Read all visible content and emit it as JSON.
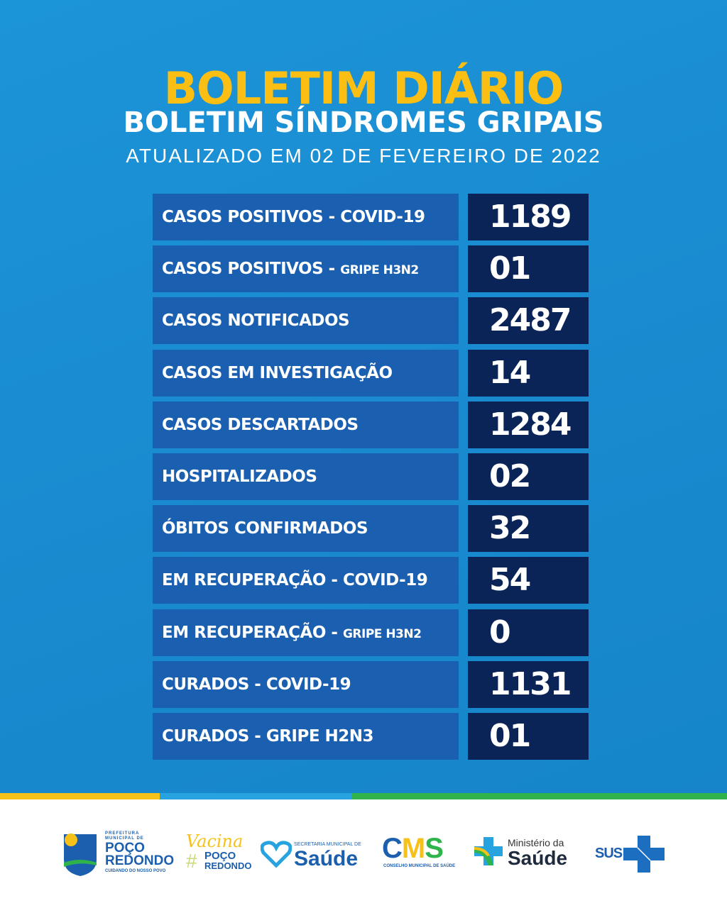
{
  "header": {
    "title": "BOLETIM DIÁRIO",
    "subtitle": "BOLETIM SÍNDROMES GRIPAIS",
    "updated": "ATUALIZADO EM 02 DE FEVEREIRO DE 2022"
  },
  "rows": [
    {
      "label": "CASOS POSITIVOS - COVID-19",
      "sub": "",
      "value": "1189"
    },
    {
      "label": "CASOS POSITIVOS - ",
      "sub": "GRIPE H3N2",
      "value": "01"
    },
    {
      "label": "CASOS NOTIFICADOS",
      "sub": "",
      "value": "2487"
    },
    {
      "label": "CASOS EM INVESTIGAÇÃO",
      "sub": "",
      "value": "14"
    },
    {
      "label": "CASOS DESCARTADOS",
      "sub": "",
      "value": "1284"
    },
    {
      "label": "HOSPITALIZADOS",
      "sub": "",
      "value": "02"
    },
    {
      "label": "ÓBITOS CONFIRMADOS",
      "sub": "",
      "value": "32"
    },
    {
      "label": "EM RECUPERAÇÃO - COVID-19",
      "sub": "",
      "value": "54"
    },
    {
      "label": "EM RECUPERAÇÃO - ",
      "sub": "GRIPE H3N2",
      "value": "0"
    },
    {
      "label": "CURADOS - COVID-19",
      "sub": "",
      "value": "1131"
    },
    {
      "label": "CURADOS - GRIPE H2N3",
      "sub": "",
      "value": "01"
    }
  ],
  "footer": {
    "prefeitura": {
      "line1": "PREFEITURA",
      "line2": "MUNICIPAL DE",
      "name1": "POÇO",
      "name2": "REDONDO",
      "tagline": "CUIDANDO DO NOSSO POVO"
    },
    "vacina": {
      "script": "Vacina",
      "hash": "#",
      "name1": "POÇO",
      "name2": "REDONDO"
    },
    "secretaria": {
      "top": "SECRETARIA MUNICIPAL DE",
      "name": "Saúde"
    },
    "cms": {
      "c": "C",
      "m": "M",
      "s": "S",
      "sub": "CONSELHO MUNICIPAL DE SAÚDE"
    },
    "ministerio": {
      "top": "Ministério da",
      "name": "Saúde"
    },
    "sus": {
      "name": "SUS"
    }
  },
  "colors": {
    "background": "#1a8ed3",
    "label_box": "#1a5fb0",
    "value_box": "#0b2458",
    "title": "#fbbf14",
    "stripe_yellow": "#f6c21a",
    "stripe_blue": "#27a3e0",
    "stripe_green": "#2fb34a"
  }
}
